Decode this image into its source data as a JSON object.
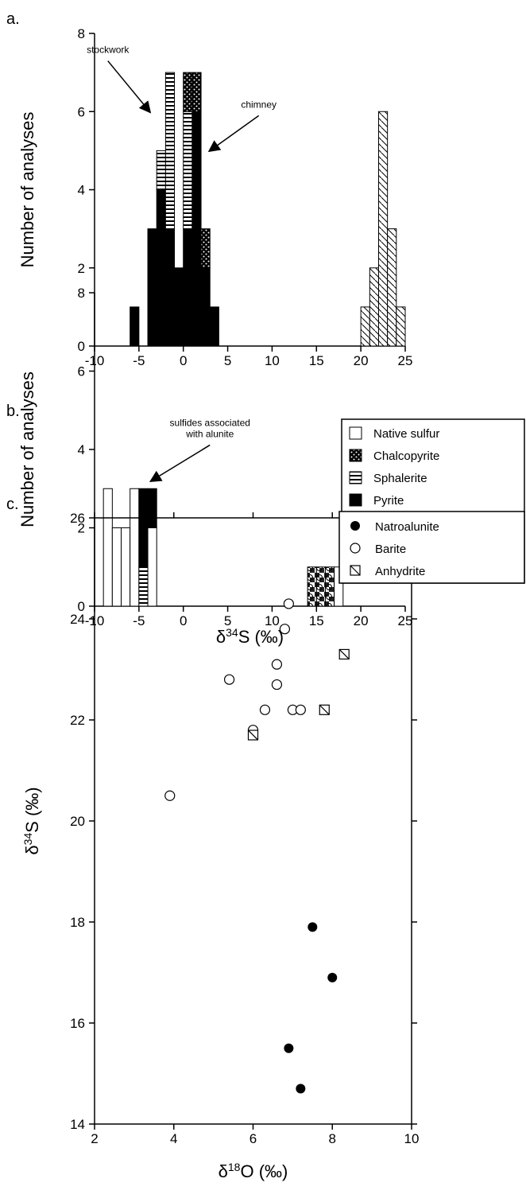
{
  "chart_data": [
    {
      "type": "histogram",
      "panel_label": "a.",
      "ylabel": "Number of analyses",
      "bins": [
        -10,
        -9,
        -8,
        -7,
        -6,
        -5,
        -4,
        -3,
        -2,
        -1,
        0,
        1,
        2,
        3,
        4,
        5,
        6,
        7,
        8,
        9,
        10,
        11,
        12,
        13,
        14,
        15,
        16,
        17,
        18,
        19,
        20,
        21,
        22,
        23,
        24,
        25
      ],
      "xlim": [
        -10,
        25
      ],
      "xticks": [
        -10,
        -5,
        0,
        5,
        10,
        15,
        20,
        25
      ],
      "ylim": [
        0,
        8
      ],
      "yticks": [
        0,
        2,
        4,
        6,
        8
      ],
      "series": [
        {
          "pattern": "pyrite",
          "values": [
            0,
            0,
            0,
            0,
            1,
            0,
            3,
            4,
            3,
            2,
            3,
            6,
            2,
            1,
            0,
            0,
            0,
            0,
            0,
            0,
            0,
            0,
            0,
            0,
            0,
            0,
            0,
            0,
            0,
            0,
            0,
            0,
            0,
            0,
            0
          ]
        },
        {
          "pattern": "sphalerite",
          "values": [
            0,
            0,
            0,
            0,
            0,
            0,
            0,
            1,
            4,
            0,
            3,
            0,
            0,
            0,
            0,
            0,
            0,
            0,
            0,
            0,
            0,
            0,
            0,
            0,
            0,
            0,
            0,
            0,
            0,
            0,
            0,
            0,
            0,
            0,
            0
          ]
        },
        {
          "pattern": "chalcopyrite",
          "values": [
            0,
            0,
            0,
            0,
            0,
            0,
            0,
            0,
            0,
            0,
            1,
            1,
            1,
            0,
            0,
            0,
            0,
            0,
            0,
            0,
            0,
            0,
            0,
            0,
            0,
            0,
            0,
            0,
            0,
            0,
            0,
            0,
            0,
            0,
            0
          ]
        },
        {
          "pattern": "barite",
          "values": [
            0,
            0,
            0,
            0,
            0,
            0,
            0,
            0,
            0,
            0,
            0,
            0,
            0,
            0,
            0,
            0,
            0,
            0,
            0,
            0,
            0,
            0,
            0,
            0,
            0,
            0,
            0,
            0,
            0,
            0,
            1,
            2,
            6,
            3,
            1
          ]
        }
      ],
      "annotations": [
        {
          "text": [
            "stockwork"
          ],
          "x": -8.5,
          "y": 7.5,
          "arrow_to": [
            -3.8,
            6.0
          ]
        },
        {
          "text": [
            "chimney"
          ],
          "x": 8.5,
          "y": 6.1,
          "arrow_to": [
            3.0,
            5.0
          ]
        }
      ]
    },
    {
      "type": "histogram",
      "panel_label": "b.",
      "ylabel": "Number of analyses",
      "xlabel": [
        "δ",
        "34",
        "S (‰)"
      ],
      "bins": [
        -10,
        -9,
        -8,
        -7,
        -6,
        -5,
        -4,
        -3,
        -2,
        -1,
        0,
        1,
        2,
        3,
        4,
        5,
        6,
        7,
        8,
        9,
        10,
        11,
        12,
        13,
        14,
        15,
        16,
        17,
        18,
        19,
        20,
        21,
        22,
        23,
        24,
        25
      ],
      "xlim": [
        -10,
        25
      ],
      "xticks": [
        -10,
        -5,
        0,
        5,
        10,
        15,
        20,
        25
      ],
      "ylim": [
        0,
        8
      ],
      "yticks": [
        0,
        2,
        4,
        6,
        8
      ],
      "legend": "right",
      "series": [
        {
          "name": "Native sulfur",
          "pattern": "native-sulfur",
          "values": [
            0,
            3,
            2,
            2,
            3,
            0,
            2,
            0,
            0,
            0,
            0,
            0,
            0,
            0,
            0,
            0,
            0,
            0,
            0,
            0,
            0,
            0,
            0,
            0,
            0,
            0,
            0,
            1,
            0,
            0,
            0,
            0,
            0,
            0,
            0
          ]
        },
        {
          "name": "Chalcopyrite",
          "pattern": "chalcopyrite",
          "values": [
            0,
            0,
            0,
            0,
            0,
            0,
            0,
            0,
            0,
            0,
            0,
            0,
            0,
            0,
            0,
            0,
            0,
            0,
            0,
            0,
            0,
            0,
            0,
            0,
            0,
            0,
            0,
            0,
            0,
            0,
            0,
            0,
            0,
            0,
            0
          ]
        },
        {
          "name": "Sphalerite",
          "pattern": "sphalerite",
          "values": [
            0,
            0,
            0,
            0,
            0,
            1,
            0,
            0,
            0,
            0,
            0,
            0,
            0,
            0,
            0,
            0,
            0,
            0,
            0,
            0,
            0,
            0,
            0,
            0,
            0,
            0,
            0,
            0,
            0,
            0,
            0,
            0,
            0,
            0,
            0
          ]
        },
        {
          "name": "Pyrite",
          "pattern": "pyrite",
          "values": [
            0,
            0,
            0,
            0,
            0,
            2,
            1,
            0,
            0,
            0,
            0,
            0,
            0,
            0,
            0,
            0,
            0,
            0,
            0,
            0,
            0,
            0,
            0,
            0,
            0,
            0,
            0,
            0,
            0,
            0,
            0,
            0,
            0,
            0,
            0
          ]
        },
        {
          "name": "Natroalunite",
          "pattern": "natroalunite",
          "values": [
            0,
            0,
            0,
            0,
            0,
            0,
            0,
            0,
            0,
            0,
            0,
            0,
            0,
            0,
            0,
            0,
            0,
            0,
            0,
            0,
            0,
            0,
            0,
            0,
            1,
            1,
            1,
            0,
            0,
            0,
            0,
            0,
            0,
            0,
            0
          ]
        },
        {
          "name": "Anhydrite",
          "pattern": "anhydrite",
          "values": [
            0,
            0,
            0,
            0,
            0,
            0,
            0,
            0,
            0,
            0,
            0,
            0,
            0,
            0,
            0,
            0,
            0,
            0,
            0,
            0,
            0,
            0,
            0,
            0,
            0,
            0,
            0,
            0,
            0,
            0,
            0,
            0,
            0,
            0,
            0
          ]
        },
        {
          "name": "Barite",
          "pattern": "barite",
          "values": [
            0,
            0,
            0,
            0,
            0,
            0,
            0,
            0,
            0,
            0,
            0,
            0,
            0,
            0,
            0,
            0,
            0,
            0,
            0,
            0,
            0,
            0,
            0,
            0,
            0,
            0,
            0,
            0,
            0,
            0,
            0,
            0,
            0,
            0,
            0
          ]
        }
      ],
      "annotations": [
        {
          "text": [
            "sulfides associated",
            "with alunite"
          ],
          "x": 3.0,
          "y": 4.6,
          "arrow_to": [
            -3.6,
            3.2
          ]
        }
      ]
    },
    {
      "type": "scatter",
      "panel_label": "c.",
      "xlabel": [
        "δ",
        "18",
        "O (‰)"
      ],
      "ylabel": [
        "δ",
        "34",
        "S (‰)"
      ],
      "xlim": [
        2,
        10
      ],
      "xticks": [
        2,
        4,
        6,
        8,
        10
      ],
      "ylim": [
        14,
        26
      ],
      "yticks": [
        14,
        16,
        18,
        20,
        22,
        24,
        26
      ],
      "legend": "upper right",
      "series": [
        {
          "name": "Natroalunite",
          "marker": "filled-circle",
          "x": [
            7.5,
            8.0,
            6.9,
            7.2
          ],
          "y": [
            17.9,
            16.9,
            15.5,
            14.7
          ]
        },
        {
          "name": "Barite",
          "marker": "open-circle",
          "x": [
            3.9,
            5.4,
            6.0,
            6.3,
            6.6,
            6.6,
            6.8,
            6.9,
            7.0,
            7.2
          ],
          "y": [
            20.5,
            22.8,
            21.8,
            22.2,
            23.1,
            22.7,
            23.8,
            24.3,
            22.2,
            22.2
          ]
        },
        {
          "name": "Anhydrite",
          "marker": "boxed-slash",
          "x": [
            6.0,
            7.8,
            8.3
          ],
          "y": [
            21.7,
            22.2,
            23.3
          ]
        }
      ]
    }
  ]
}
